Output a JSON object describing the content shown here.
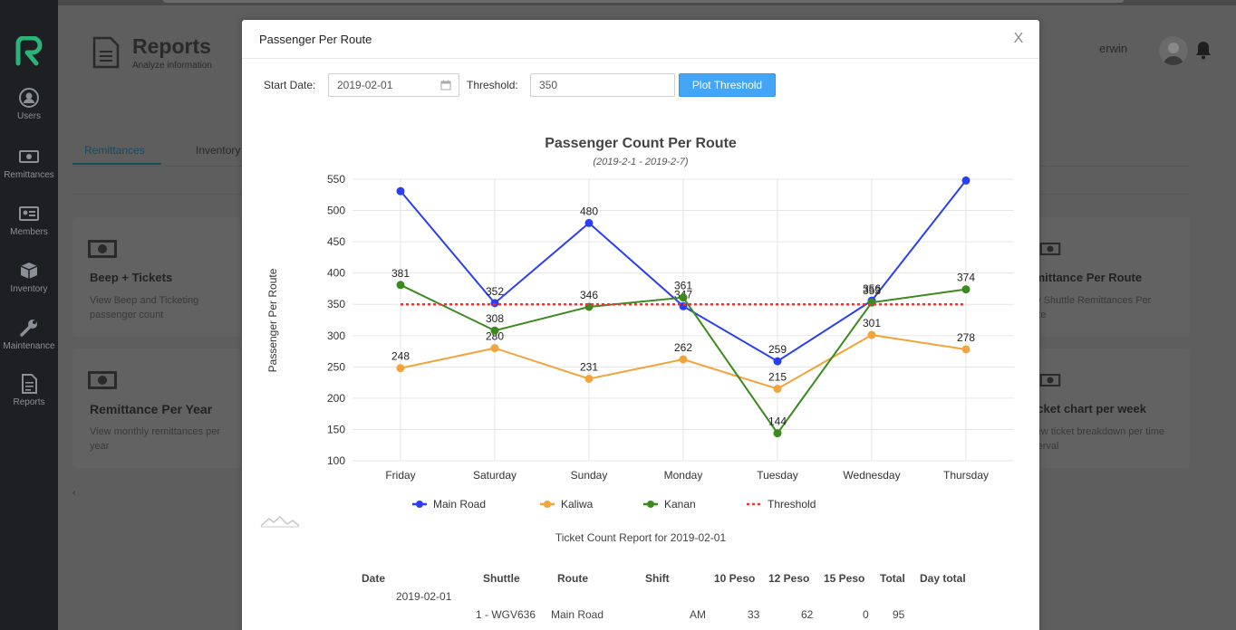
{
  "sidebar": {
    "items": [
      {
        "label": "Users",
        "icon": "user-icon"
      },
      {
        "label": "Remittances",
        "icon": "cash-icon"
      },
      {
        "label": "Members",
        "icon": "id-card-icon"
      },
      {
        "label": "Inventory",
        "icon": "box-icon"
      },
      {
        "label": "Maintenance",
        "icon": "wrench-icon"
      },
      {
        "label": "Reports",
        "icon": "document-icon"
      }
    ]
  },
  "header": {
    "title": "Reports",
    "subtitle": "Analyze information",
    "user_name": "erwin"
  },
  "tabs": [
    {
      "label": "Remittances"
    },
    {
      "label": "Inventory"
    }
  ],
  "cards": {
    "left": [
      {
        "title": "Beep + Tickets",
        "desc": "View Beep and Ticketing passenger count"
      },
      {
        "title": "Remittance Per Year",
        "desc": "View monthly remittances per year"
      }
    ],
    "right": [
      {
        "title": "Remittance Per Route",
        "desc": "View Shuttle Remittances Per Route"
      },
      {
        "title": "Ticket chart per week",
        "desc": "View ticket breakdown per time interval"
      }
    ]
  },
  "modal": {
    "title": "Passenger Per Route",
    "close_label": "X",
    "start_date_label": "Start Date:",
    "start_date_value": "2019-02-01",
    "threshold_label": "Threshold:",
    "threshold_value": "350",
    "plot_button": "Plot Threshold"
  },
  "chart_data": {
    "type": "line",
    "title": "Passenger Count Per Route",
    "subtitle": "(2019-2-1 - 2019-2-7)",
    "xlabel": "",
    "ylabel": "Passenger Per Route",
    "ylim": [
      100,
      550
    ],
    "yticks": [
      100,
      150,
      200,
      250,
      300,
      350,
      400,
      450,
      500,
      550
    ],
    "grid": true,
    "legend_position": "bottom",
    "categories": [
      "Friday",
      "Saturday",
      "Sunday",
      "Monday",
      "Tuesday",
      "Wednesday",
      "Thursday"
    ],
    "series": [
      {
        "name": "Main Road",
        "color": "#2b3ff0",
        "values": [
          531,
          352,
          480,
          347,
          259,
          356,
          548
        ],
        "labels": [
          "",
          "352",
          "480",
          "347",
          "259",
          "356",
          ""
        ]
      },
      {
        "name": "Kaliwa",
        "color": "#f2a33a",
        "values": [
          248,
          280,
          231,
          262,
          215,
          301,
          278
        ],
        "labels": [
          "248",
          "280",
          "231",
          "262",
          "215",
          "301",
          "278"
        ]
      },
      {
        "name": "Kanan",
        "color": "#3a8a1e",
        "values": [
          381,
          308,
          346,
          361,
          144,
          353,
          374
        ],
        "labels": [
          "381",
          "308",
          "346",
          "361",
          "144",
          "353",
          "374"
        ]
      },
      {
        "name": "Threshold",
        "color": "#e53935",
        "values": [
          350,
          350,
          350,
          350,
          350,
          350,
          350
        ],
        "dashed": true
      }
    ]
  },
  "report": {
    "title": "Ticket Count Report for 2019-02-01",
    "columns": [
      "Date",
      "Shuttle",
      "Route",
      "Shift",
      "10 Peso",
      "12 Peso",
      "15 Peso",
      "Total",
      "Day total"
    ],
    "date": "2019-02-01",
    "rows": [
      {
        "shuttle": "1 - WGV636",
        "route": "Main Road",
        "shift": "AM",
        "p10": "33",
        "p12": "62",
        "p15": "0",
        "total": "95"
      }
    ]
  }
}
